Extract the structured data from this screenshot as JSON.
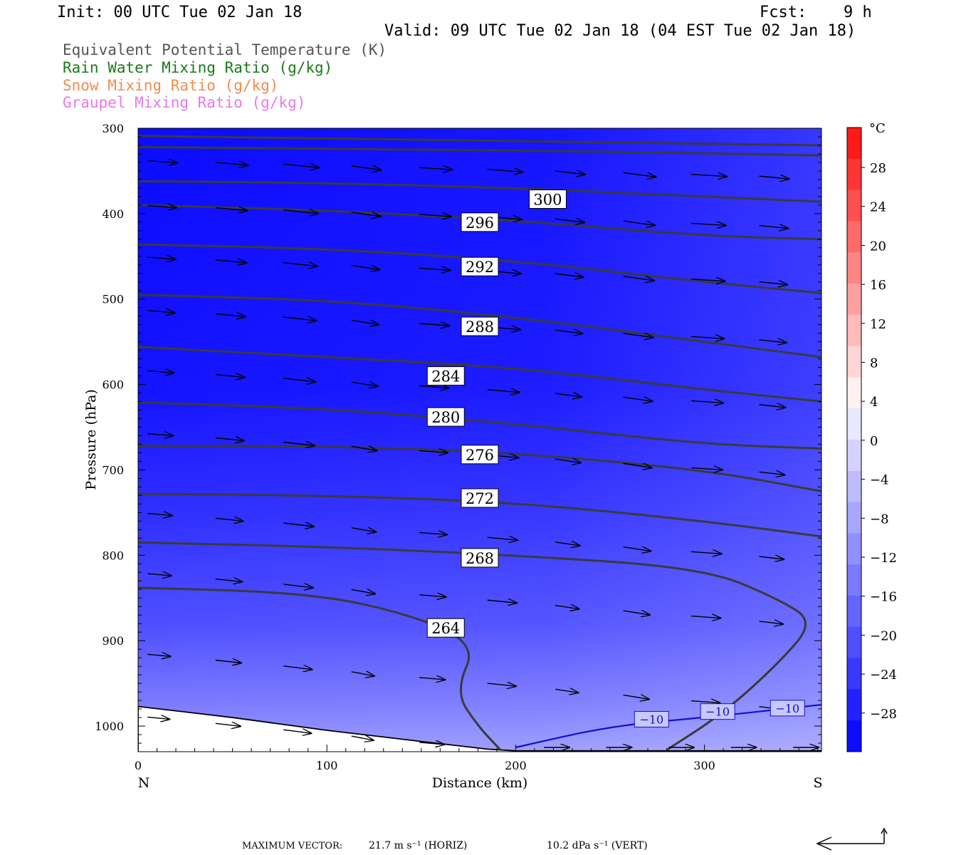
{
  "header": {
    "init": "Init: 00 UTC Tue 02 Jan 18",
    "fcst_label": "Fcst:",
    "fcst_value": "9 h",
    "valid": "Valid: 09 UTC Tue 02 Jan 18 (04 EST Tue 02 Jan 18)"
  },
  "legend": [
    {
      "text": "Equivalent Potential Temperature (K)",
      "color": "#555555"
    },
    {
      "text": "Rain Water Mixing Ratio (g/kg)",
      "color": "#1a7a1a"
    },
    {
      "text": "Snow Mixing Ratio (g/kg)",
      "color": "#f08c50"
    },
    {
      "text": "Graupel Mixing Ratio (g/kg)",
      "color": "#e878e8"
    }
  ],
  "footer": {
    "max_vector_label": "MAXIMUM VECTOR:",
    "horiz": "21.7 m s⁻¹ (HORIZ)",
    "vert": "10.2 dPa s⁻¹ (VERT)"
  },
  "chart_data": {
    "type": "heatmap",
    "title": "",
    "xlabel": "Distance (km)",
    "ylabel": "Pressure (hPa)",
    "xlim": [
      0,
      362
    ],
    "ylim": [
      1030,
      300
    ],
    "x_ticks": [
      0,
      100,
      200,
      300
    ],
    "y_ticks": [
      300,
      400,
      500,
      600,
      700,
      800,
      900,
      1000
    ],
    "x_end_labels": {
      "left": "N",
      "right": "S"
    },
    "colorbar": {
      "unit": "°C",
      "labels": [
        "28",
        "24",
        "20",
        "16",
        "12",
        "8",
        "4",
        "0",
        "−4",
        "−8",
        "−12",
        "−16",
        "−20",
        "−24",
        "−28"
      ],
      "colors": [
        "#ff1a1a",
        "#ff3535",
        "#ff5050",
        "#ff6a6a",
        "#ff8585",
        "#ffa0a0",
        "#ffbaba",
        "#ffd5d5",
        "#fff0f0",
        "#e8e8ff",
        "#d2d2ff",
        "#bcbcff",
        "#a6a6ff",
        "#9090ff",
        "#7a7aff",
        "#6464ff",
        "#4e4eff",
        "#3838ff",
        "#2222ff",
        "#0c0cff"
      ]
    },
    "theta_e_labels": [
      {
        "value": "300",
        "x": 217,
        "p": 383
      },
      {
        "value": "296",
        "x": 181,
        "p": 410
      },
      {
        "value": "292",
        "x": 181,
        "p": 462
      },
      {
        "value": "288",
        "x": 181,
        "p": 532
      },
      {
        "value": "284",
        "x": 163,
        "p": 590
      },
      {
        "value": "280",
        "x": 163,
        "p": 638
      },
      {
        "value": "276",
        "x": 181,
        "p": 682
      },
      {
        "value": "272",
        "x": 181,
        "p": 733
      },
      {
        "value": "268",
        "x": 181,
        "p": 803
      },
      {
        "value": "264",
        "x": 163,
        "p": 885
      }
    ],
    "theta_e_lines": [
      [
        [
          0,
          309
        ],
        [
          100,
          312
        ],
        [
          200,
          315
        ],
        [
          300,
          318
        ],
        [
          362,
          320
        ]
      ],
      [
        [
          0,
          322
        ],
        [
          100,
          324
        ],
        [
          200,
          326
        ],
        [
          300,
          329
        ],
        [
          362,
          332
        ]
      ],
      [
        [
          0,
          362
        ],
        [
          100,
          364
        ],
        [
          200,
          370
        ],
        [
          300,
          380
        ],
        [
          362,
          386
        ]
      ],
      [
        [
          0,
          390
        ],
        [
          100,
          396
        ],
        [
          200,
          408
        ],
        [
          300,
          426
        ],
        [
          362,
          430
        ]
      ],
      [
        [
          0,
          436
        ],
        [
          100,
          441
        ],
        [
          200,
          455
        ],
        [
          300,
          480
        ],
        [
          362,
          493
        ]
      ],
      [
        [
          0,
          495
        ],
        [
          100,
          501
        ],
        [
          200,
          521
        ],
        [
          300,
          550
        ],
        [
          362,
          568
        ]
      ],
      [
        [
          0,
          556
        ],
        [
          100,
          568
        ],
        [
          200,
          580
        ],
        [
          300,
          606
        ],
        [
          362,
          620
        ]
      ],
      [
        [
          0,
          621
        ],
        [
          100,
          628
        ],
        [
          200,
          646
        ],
        [
          300,
          670
        ],
        [
          362,
          675
        ]
      ],
      [
        [
          0,
          672
        ],
        [
          100,
          672
        ],
        [
          200,
          680
        ],
        [
          300,
          700
        ],
        [
          362,
          725
        ]
      ],
      [
        [
          0,
          728
        ],
        [
          100,
          730
        ],
        [
          200,
          738
        ],
        [
          300,
          760
        ],
        [
          362,
          778
        ]
      ],
      [
        [
          0,
          785
        ],
        [
          100,
          790
        ],
        [
          200,
          800
        ],
        [
          300,
          815
        ],
        [
          340,
          852
        ],
        [
          358,
          878
        ],
        [
          340,
          925
        ],
        [
          310,
          985
        ],
        [
          280,
          1028
        ]
      ],
      [
        [
          0,
          838
        ],
        [
          80,
          843
        ],
        [
          130,
          860
        ],
        [
          180,
          900
        ],
        [
          168,
          960
        ],
        [
          180,
          1000
        ],
        [
          192,
          1028
        ]
      ]
    ],
    "isotherm_minus10": {
      "label": "−10",
      "points": [
        [
          200,
          1025
        ],
        [
          250,
          1000
        ],
        [
          300,
          990
        ],
        [
          362,
          975
        ]
      ],
      "label_positions": [
        [
          272,
          992
        ],
        [
          307,
          983
        ],
        [
          344,
          979
        ]
      ],
      "color": "#1010d0"
    },
    "wind_vectors_dir": "left-to-right"
  }
}
